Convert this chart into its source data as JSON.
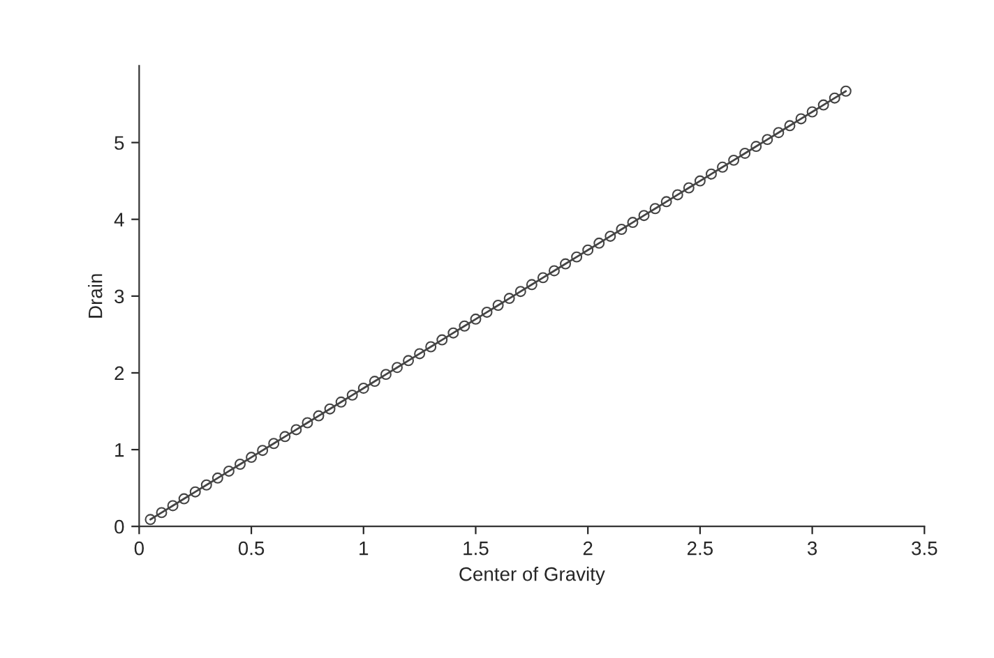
{
  "chart_data": {
    "type": "line",
    "xlabel": "Center of Gravity",
    "ylabel": "Drain",
    "x": [
      0.05,
      0.1,
      0.15,
      0.2,
      0.25,
      0.3,
      0.35,
      0.4,
      0.45,
      0.5,
      0.55,
      0.6,
      0.65,
      0.7,
      0.75,
      0.8,
      0.85,
      0.9,
      0.95,
      1.0,
      1.05,
      1.1,
      1.15,
      1.2,
      1.25,
      1.3,
      1.35,
      1.4,
      1.45,
      1.5,
      1.55,
      1.6,
      1.65,
      1.7,
      1.75,
      1.8,
      1.85,
      1.9,
      1.95,
      2.0,
      2.05,
      2.1,
      2.15,
      2.2,
      2.25,
      2.3,
      2.35,
      2.4,
      2.45,
      2.5,
      2.55,
      2.6,
      2.65,
      2.7,
      2.75,
      2.8,
      2.85,
      2.9,
      2.95,
      3.0,
      3.05,
      3.1,
      3.15
    ],
    "series": [
      {
        "color": "#444444",
        "values": [
          0.09,
          0.18,
          0.27,
          0.36,
          0.45,
          0.54,
          0.63,
          0.72,
          0.81,
          0.9,
          0.99,
          1.08,
          1.17,
          1.26,
          1.35,
          1.44,
          1.53,
          1.62,
          1.71,
          1.8,
          1.89,
          1.98,
          2.07,
          2.16,
          2.25,
          2.34,
          2.43,
          2.52,
          2.61,
          2.7,
          2.79,
          2.88,
          2.97,
          3.06,
          3.15,
          3.24,
          3.33,
          3.42,
          3.51,
          3.6,
          3.69,
          3.78,
          3.87,
          3.96,
          4.05,
          4.14,
          4.23,
          4.32,
          4.41,
          4.5,
          4.59,
          4.68,
          4.77,
          4.86,
          4.95,
          5.04,
          5.13,
          5.22,
          5.31,
          5.4,
          5.49,
          5.58,
          5.67
        ]
      }
    ],
    "xlim": [
      0,
      3.5
    ],
    "xticks": [
      0,
      0.5,
      1,
      1.5,
      2,
      2.5,
      3,
      3.5
    ],
    "ylim": [
      0,
      6
    ],
    "yticks": [
      0,
      1,
      2,
      3,
      4,
      5
    ],
    "marker": "circle",
    "line_style": "solid",
    "grid": false,
    "legend": false
  }
}
